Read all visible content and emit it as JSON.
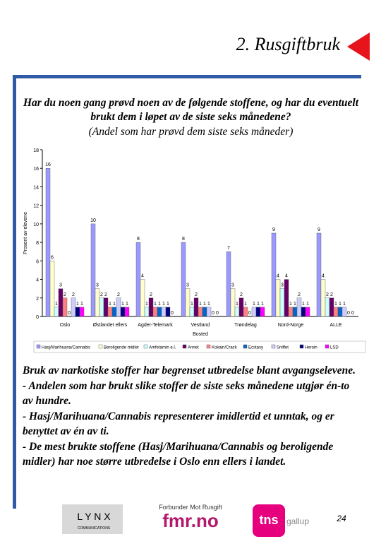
{
  "header": {
    "title": "2. Rusgiftbruk"
  },
  "question": {
    "text": "Har du noen gang prøvd noen av de følgende stoffene, og har du eventuelt brukt dem i løpet av de siste seks månedene?",
    "subtext": "(Andel som har prøvd dem siste seks måneder)"
  },
  "chart_data": {
    "type": "bar",
    "categories": [
      "Oslo",
      "Østlandet ellers",
      "Agder-Telemark",
      "Vestland",
      "Trøndelag",
      "Nord-Norge",
      "ALLE"
    ],
    "y_label": "Prosent av elevene",
    "x_label": "Bosted",
    "ylim": [
      0,
      18
    ],
    "yticks": [
      0,
      2,
      4,
      6,
      8,
      10,
      12,
      14,
      16,
      18
    ],
    "series": [
      {
        "name": "Hasj/Marihuana/Cannabis",
        "color": "#9999ff",
        "values": [
          16,
          10,
          8,
          8,
          7,
          9,
          9
        ]
      },
      {
        "name": "Beroligende midler",
        "color": "#ffffcc",
        "values": [
          6,
          3,
          4,
          3,
          3,
          4,
          4
        ]
      },
      {
        "name": "Amfetamin e.l.",
        "color": "#ccffff",
        "values": [
          1,
          2,
          1,
          1,
          1,
          3,
          2
        ]
      },
      {
        "name": "Annet",
        "color": "#660066",
        "values": [
          3,
          2,
          2,
          2,
          2,
          4,
          2
        ]
      },
      {
        "name": "Kokain/Crack",
        "color": "#ff8080",
        "values": [
          2,
          1,
          1,
          1,
          1,
          1,
          1
        ]
      },
      {
        "name": "Ecstasy",
        "color": "#0066cc",
        "values": [
          0,
          1,
          1,
          1,
          0,
          1,
          1
        ]
      },
      {
        "name": "Sniffet",
        "color": "#ccccff",
        "values": [
          2,
          2,
          1,
          1,
          1,
          2,
          1
        ]
      },
      {
        "name": "Heroin",
        "color": "#000080",
        "values": [
          1,
          1,
          1,
          0,
          1,
          1,
          0
        ]
      },
      {
        "name": "LSD",
        "color": "#ff00ff",
        "values": [
          1,
          1,
          0,
          0,
          1,
          1,
          0
        ]
      }
    ]
  },
  "body": {
    "paragraphs": [
      "Bruk av narkotiske stoffer har begrenset utbredelse blant avgangselevene.",
      "- Andelen som har brukt slike stoffer de siste seks månedene utgjør én-to av hundre.",
      "- Hasj/Marihuana/Cannabis representerer imidlertid et unntak, og er benyttet av én av ti.",
      "- De mest brukte stoffene (Hasj/Marihuana/Cannabis og beroligende midler) har noe større utbredelse i Oslo enn ellers i landet."
    ]
  },
  "footer": {
    "lynx": "L Y N X",
    "lynx_sub": "COMMUNICATIONS",
    "fmr_top": "Forbunder Mot Rusgift",
    "fmr": "fmr.no",
    "tns": "tns",
    "gallup": "gallup",
    "page": "24"
  }
}
